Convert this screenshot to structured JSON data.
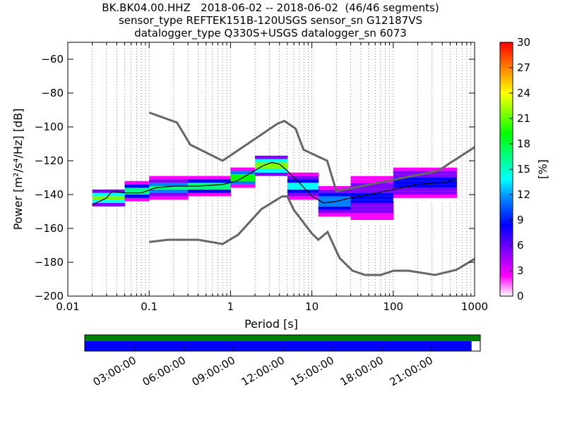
{
  "chart_data": {
    "type": "heatmap",
    "title_lines": [
      "BK.BK04.00.HHZ   2018-06-02 -- 2018-06-02  (46/46 segments)",
      "sensor_type REFTEK151B-120USGS sensor_sn G12187VS",
      "datalogger_type Q330S+USGS datalogger_sn 6073"
    ],
    "xlabel": "Period [s]",
    "ylabel": "Power [m²/s⁴/Hz] [dB]",
    "x_scale": "log",
    "xlim": [
      0.01,
      1000
    ],
    "ylim": [
      -200,
      -50
    ],
    "x_ticks": [
      {
        "value": 0.01,
        "label": "0.01"
      },
      {
        "value": 0.1,
        "label": "0.1"
      },
      {
        "value": 1,
        "label": "1"
      },
      {
        "value": 10,
        "label": "10"
      },
      {
        "value": 100,
        "label": "100"
      },
      {
        "value": 1000,
        "label": "1000"
      }
    ],
    "y_ticks": [
      {
        "value": -60,
        "label": "−60"
      },
      {
        "value": -80,
        "label": "−80"
      },
      {
        "value": -100,
        "label": "−100"
      },
      {
        "value": -120,
        "label": "−120"
      },
      {
        "value": -140,
        "label": "−140"
      },
      {
        "value": -160,
        "label": "−160"
      },
      {
        "value": -180,
        "label": "−180"
      },
      {
        "value": -200,
        "label": "−200"
      }
    ],
    "grid": "dotted vertical at periods",
    "colorbar": {
      "label": "[%]",
      "range": [
        0,
        30
      ],
      "ticks": [
        {
          "value": 0,
          "label": "0"
        },
        {
          "value": 3,
          "label": "3"
        },
        {
          "value": 6,
          "label": "6"
        },
        {
          "value": 9,
          "label": "9"
        },
        {
          "value": 12,
          "label": "12"
        },
        {
          "value": 15,
          "label": "15"
        },
        {
          "value": 18,
          "label": "18"
        },
        {
          "value": 21,
          "label": "21"
        },
        {
          "value": 24,
          "label": "24"
        },
        {
          "value": 27,
          "label": "27"
        },
        {
          "value": 30,
          "label": "30"
        }
      ],
      "colors": [
        "#ffffff",
        "#ff00ff",
        "#8000ff",
        "#0000ff",
        "#0080ff",
        "#00ffff",
        "#00ff80",
        "#00ff00",
        "#80ff00",
        "#ffff00",
        "#ff8000",
        "#ff0000"
      ]
    },
    "nhnm": [
      [
        0.1,
        -91.5
      ],
      [
        0.22,
        -97.4
      ],
      [
        0.32,
        -110.5
      ],
      [
        0.8,
        -120
      ],
      [
        3.8,
        -98
      ],
      [
        4.6,
        -96.5
      ],
      [
        6.3,
        -101
      ],
      [
        7.9,
        -113.5
      ],
      [
        15.4,
        -120
      ],
      [
        20,
        -138
      ],
      [
        354,
        -126
      ],
      [
        1000,
        -112
      ]
    ],
    "nlnm": [
      [
        0.1,
        -168
      ],
      [
        0.17,
        -166.7
      ],
      [
        0.4,
        -166.7
      ],
      [
        0.8,
        -169.2
      ],
      [
        1.24,
        -163.7
      ],
      [
        2.4,
        -148.6
      ],
      [
        4.3,
        -141.1
      ],
      [
        5,
        -141.1
      ],
      [
        6,
        -149
      ],
      [
        10,
        -163
      ],
      [
        12,
        -166.7
      ],
      [
        15.6,
        -162.1
      ],
      [
        21.9,
        -177.5
      ],
      [
        31.6,
        -185
      ],
      [
        45,
        -187.5
      ],
      [
        70,
        -187.5
      ],
      [
        101,
        -185
      ],
      [
        154,
        -185
      ],
      [
        328,
        -187.5
      ],
      [
        600,
        -184.4
      ],
      [
        1000,
        -178
      ]
    ],
    "mode_curve": [
      [
        0.02,
        -146
      ],
      [
        0.03,
        -142
      ],
      [
        0.035,
        -138
      ],
      [
        0.05,
        -139
      ],
      [
        0.08,
        -139
      ],
      [
        0.12,
        -136
      ],
      [
        0.2,
        -135
      ],
      [
        0.4,
        -135
      ],
      [
        0.8,
        -134
      ],
      [
        1.2,
        -132
      ],
      [
        1.8,
        -127
      ],
      [
        2.5,
        -123
      ],
      [
        3.2,
        -121
      ],
      [
        4,
        -122
      ],
      [
        5,
        -126
      ],
      [
        7,
        -133
      ],
      [
        10,
        -141
      ],
      [
        14,
        -145
      ],
      [
        20,
        -144
      ],
      [
        30,
        -142
      ],
      [
        50,
        -140
      ],
      [
        100,
        -137
      ],
      [
        200,
        -134
      ],
      [
        400,
        -133
      ],
      [
        600,
        -131
      ]
    ],
    "density_bands": [
      {
        "from": 0.02,
        "to": 0.05,
        "center": -142,
        "spread": 4,
        "percent": 21
      },
      {
        "from": 0.05,
        "to": 0.1,
        "center": -138,
        "spread": 5,
        "percent": 18
      },
      {
        "from": 0.1,
        "to": 0.3,
        "center": -136,
        "spread": 6,
        "percent": 15
      },
      {
        "from": 0.3,
        "to": 1,
        "center": -135,
        "spread": 5,
        "percent": 18
      },
      {
        "from": 1,
        "to": 2,
        "center": -130,
        "spread": 5,
        "percent": 24
      },
      {
        "from": 2,
        "to": 5,
        "center": -123,
        "spread": 5,
        "percent": 27
      },
      {
        "from": 5,
        "to": 12,
        "center": -135,
        "spread": 7,
        "percent": 15
      },
      {
        "from": 12,
        "to": 30,
        "center": -144,
        "spread": 10,
        "percent": 12
      },
      {
        "from": 30,
        "to": 100,
        "center": -142,
        "spread": 14,
        "percent": 9
      },
      {
        "from": 100,
        "to": 600,
        "center": -133,
        "spread": 10,
        "percent": 9
      }
    ],
    "timeline": {
      "labels": [
        "03:00:00",
        "06:00:00",
        "09:00:00",
        "12:00:00",
        "15:00:00",
        "18:00:00",
        "21:00:00"
      ],
      "coverage_fraction": 0.978,
      "coverage_color": "#0000ff",
      "segments_color": "#008000"
    }
  }
}
